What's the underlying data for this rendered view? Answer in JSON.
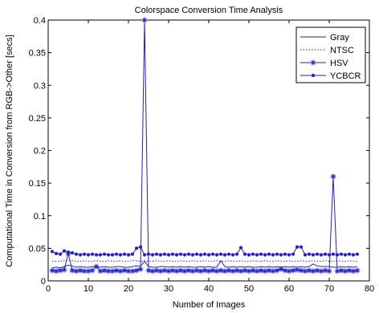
{
  "chart_data": {
    "type": "line",
    "title": "Colorspace Conversion Time Analysis",
    "xlabel": "Number of Images",
    "ylabel": "Computational Time in Conversion from RGB->Other [secs]",
    "xlim": [
      0,
      80
    ],
    "ylim": [
      0,
      0.4
    ],
    "xticks": [
      0,
      10,
      20,
      30,
      40,
      50,
      60,
      70,
      80
    ],
    "yticks": [
      0,
      0.05,
      0.1,
      0.15,
      0.2,
      0.25,
      0.3,
      0.35,
      0.4
    ],
    "xtick_labels": [
      "0",
      "10",
      "20",
      "30",
      "40",
      "50",
      "60",
      "70",
      "80"
    ],
    "ytick_labels": [
      "0",
      "0.05",
      "0.1",
      "0.15",
      "0.2",
      "0.25",
      "0.3",
      "0.35",
      "0.4"
    ],
    "grid": false,
    "legend_position": "top-right",
    "line_color": "#1f1fd0",
    "x": [
      1,
      2,
      3,
      4,
      5,
      6,
      7,
      8,
      9,
      10,
      11,
      12,
      13,
      14,
      15,
      16,
      17,
      18,
      19,
      20,
      21,
      22,
      23,
      24,
      25,
      26,
      27,
      28,
      29,
      30,
      31,
      32,
      33,
      34,
      35,
      36,
      37,
      38,
      39,
      40,
      41,
      42,
      43,
      44,
      45,
      46,
      47,
      48,
      49,
      50,
      51,
      52,
      53,
      54,
      55,
      56,
      57,
      58,
      59,
      60,
      61,
      62,
      63,
      64,
      65,
      66,
      67,
      68,
      69,
      70,
      71,
      72,
      73,
      74,
      75,
      76,
      77
    ],
    "series": [
      {
        "name": "Gray",
        "style": "solid",
        "marker": "none",
        "values": [
          0.02,
          0.021,
          0.02,
          0.022,
          0.024,
          0.023,
          0.021,
          0.022,
          0.021,
          0.021,
          0.022,
          0.021,
          0.021,
          0.022,
          0.021,
          0.021,
          0.022,
          0.022,
          0.021,
          0.021,
          0.022,
          0.023,
          0.022,
          0.03,
          0.022,
          0.021,
          0.021,
          0.022,
          0.022,
          0.021,
          0.022,
          0.021,
          0.022,
          0.021,
          0.022,
          0.021,
          0.021,
          0.022,
          0.021,
          0.022,
          0.021,
          0.021,
          0.031,
          0.022,
          0.021,
          0.022,
          0.021,
          0.022,
          0.021,
          0.022,
          0.021,
          0.021,
          0.022,
          0.021,
          0.022,
          0.021,
          0.022,
          0.021,
          0.022,
          0.021,
          0.022,
          0.021,
          0.022,
          0.021,
          0.022,
          0.026,
          0.023,
          0.022,
          0.022,
          0.022,
          0.021,
          0.021,
          0.022,
          0.021,
          0.022,
          0.021,
          0.022
        ]
      },
      {
        "name": "NTSC",
        "style": "dotted",
        "marker": "none",
        "values": [
          0.03,
          0.03,
          0.03,
          0.031,
          0.032,
          0.031,
          0.03,
          0.03,
          0.031,
          0.03,
          0.03,
          0.031,
          0.03,
          0.03,
          0.031,
          0.03,
          0.03,
          0.031,
          0.03,
          0.03,
          0.031,
          0.031,
          0.03,
          0.031,
          0.03,
          0.03,
          0.031,
          0.03,
          0.03,
          0.031,
          0.03,
          0.03,
          0.031,
          0.03,
          0.03,
          0.031,
          0.03,
          0.03,
          0.031,
          0.03,
          0.03,
          0.031,
          0.03,
          0.03,
          0.031,
          0.03,
          0.03,
          0.031,
          0.03,
          0.03,
          0.031,
          0.03,
          0.03,
          0.031,
          0.03,
          0.03,
          0.031,
          0.03,
          0.03,
          0.031,
          0.03,
          0.03,
          0.031,
          0.03,
          0.03,
          0.031,
          0.03,
          0.03,
          0.031,
          0.03,
          0.03,
          0.031,
          0.03,
          0.03,
          0.031,
          0.03,
          0.03
        ]
      },
      {
        "name": "HSV",
        "style": "solid",
        "marker": "star",
        "values": [
          0.016,
          0.015,
          0.016,
          0.017,
          0.042,
          0.016,
          0.015,
          0.016,
          0.015,
          0.015,
          0.016,
          0.022,
          0.015,
          0.016,
          0.015,
          0.015,
          0.016,
          0.015,
          0.016,
          0.015,
          0.015,
          0.016,
          0.018,
          0.4,
          0.016,
          0.015,
          0.016,
          0.015,
          0.016,
          0.015,
          0.016,
          0.015,
          0.016,
          0.015,
          0.016,
          0.015,
          0.016,
          0.015,
          0.016,
          0.015,
          0.016,
          0.015,
          0.016,
          0.015,
          0.016,
          0.015,
          0.016,
          0.015,
          0.016,
          0.015,
          0.016,
          0.015,
          0.016,
          0.015,
          0.016,
          0.015,
          0.016,
          0.018,
          0.016,
          0.015,
          0.016,
          0.017,
          0.016,
          0.015,
          0.016,
          0.015,
          0.016,
          0.015,
          0.016,
          0.015,
          0.16,
          0.015,
          0.016,
          0.015,
          0.016,
          0.015,
          0.016
        ]
      },
      {
        "name": "YCBCR",
        "style": "solid",
        "marker": "dot",
        "values": [
          0.045,
          0.042,
          0.041,
          0.046,
          0.044,
          0.043,
          0.041,
          0.04,
          0.041,
          0.04,
          0.041,
          0.04,
          0.04,
          0.041,
          0.04,
          0.04,
          0.041,
          0.04,
          0.041,
          0.04,
          0.041,
          0.05,
          0.052,
          0.04,
          0.041,
          0.04,
          0.041,
          0.04,
          0.041,
          0.04,
          0.041,
          0.04,
          0.041,
          0.04,
          0.041,
          0.04,
          0.041,
          0.04,
          0.041,
          0.04,
          0.041,
          0.04,
          0.041,
          0.04,
          0.041,
          0.04,
          0.041,
          0.051,
          0.041,
          0.04,
          0.041,
          0.04,
          0.041,
          0.04,
          0.041,
          0.04,
          0.041,
          0.04,
          0.041,
          0.04,
          0.041,
          0.052,
          0.052,
          0.04,
          0.041,
          0.04,
          0.041,
          0.04,
          0.041,
          0.04,
          0.041,
          0.04,
          0.041,
          0.04,
          0.041,
          0.04,
          0.041
        ]
      }
    ]
  }
}
